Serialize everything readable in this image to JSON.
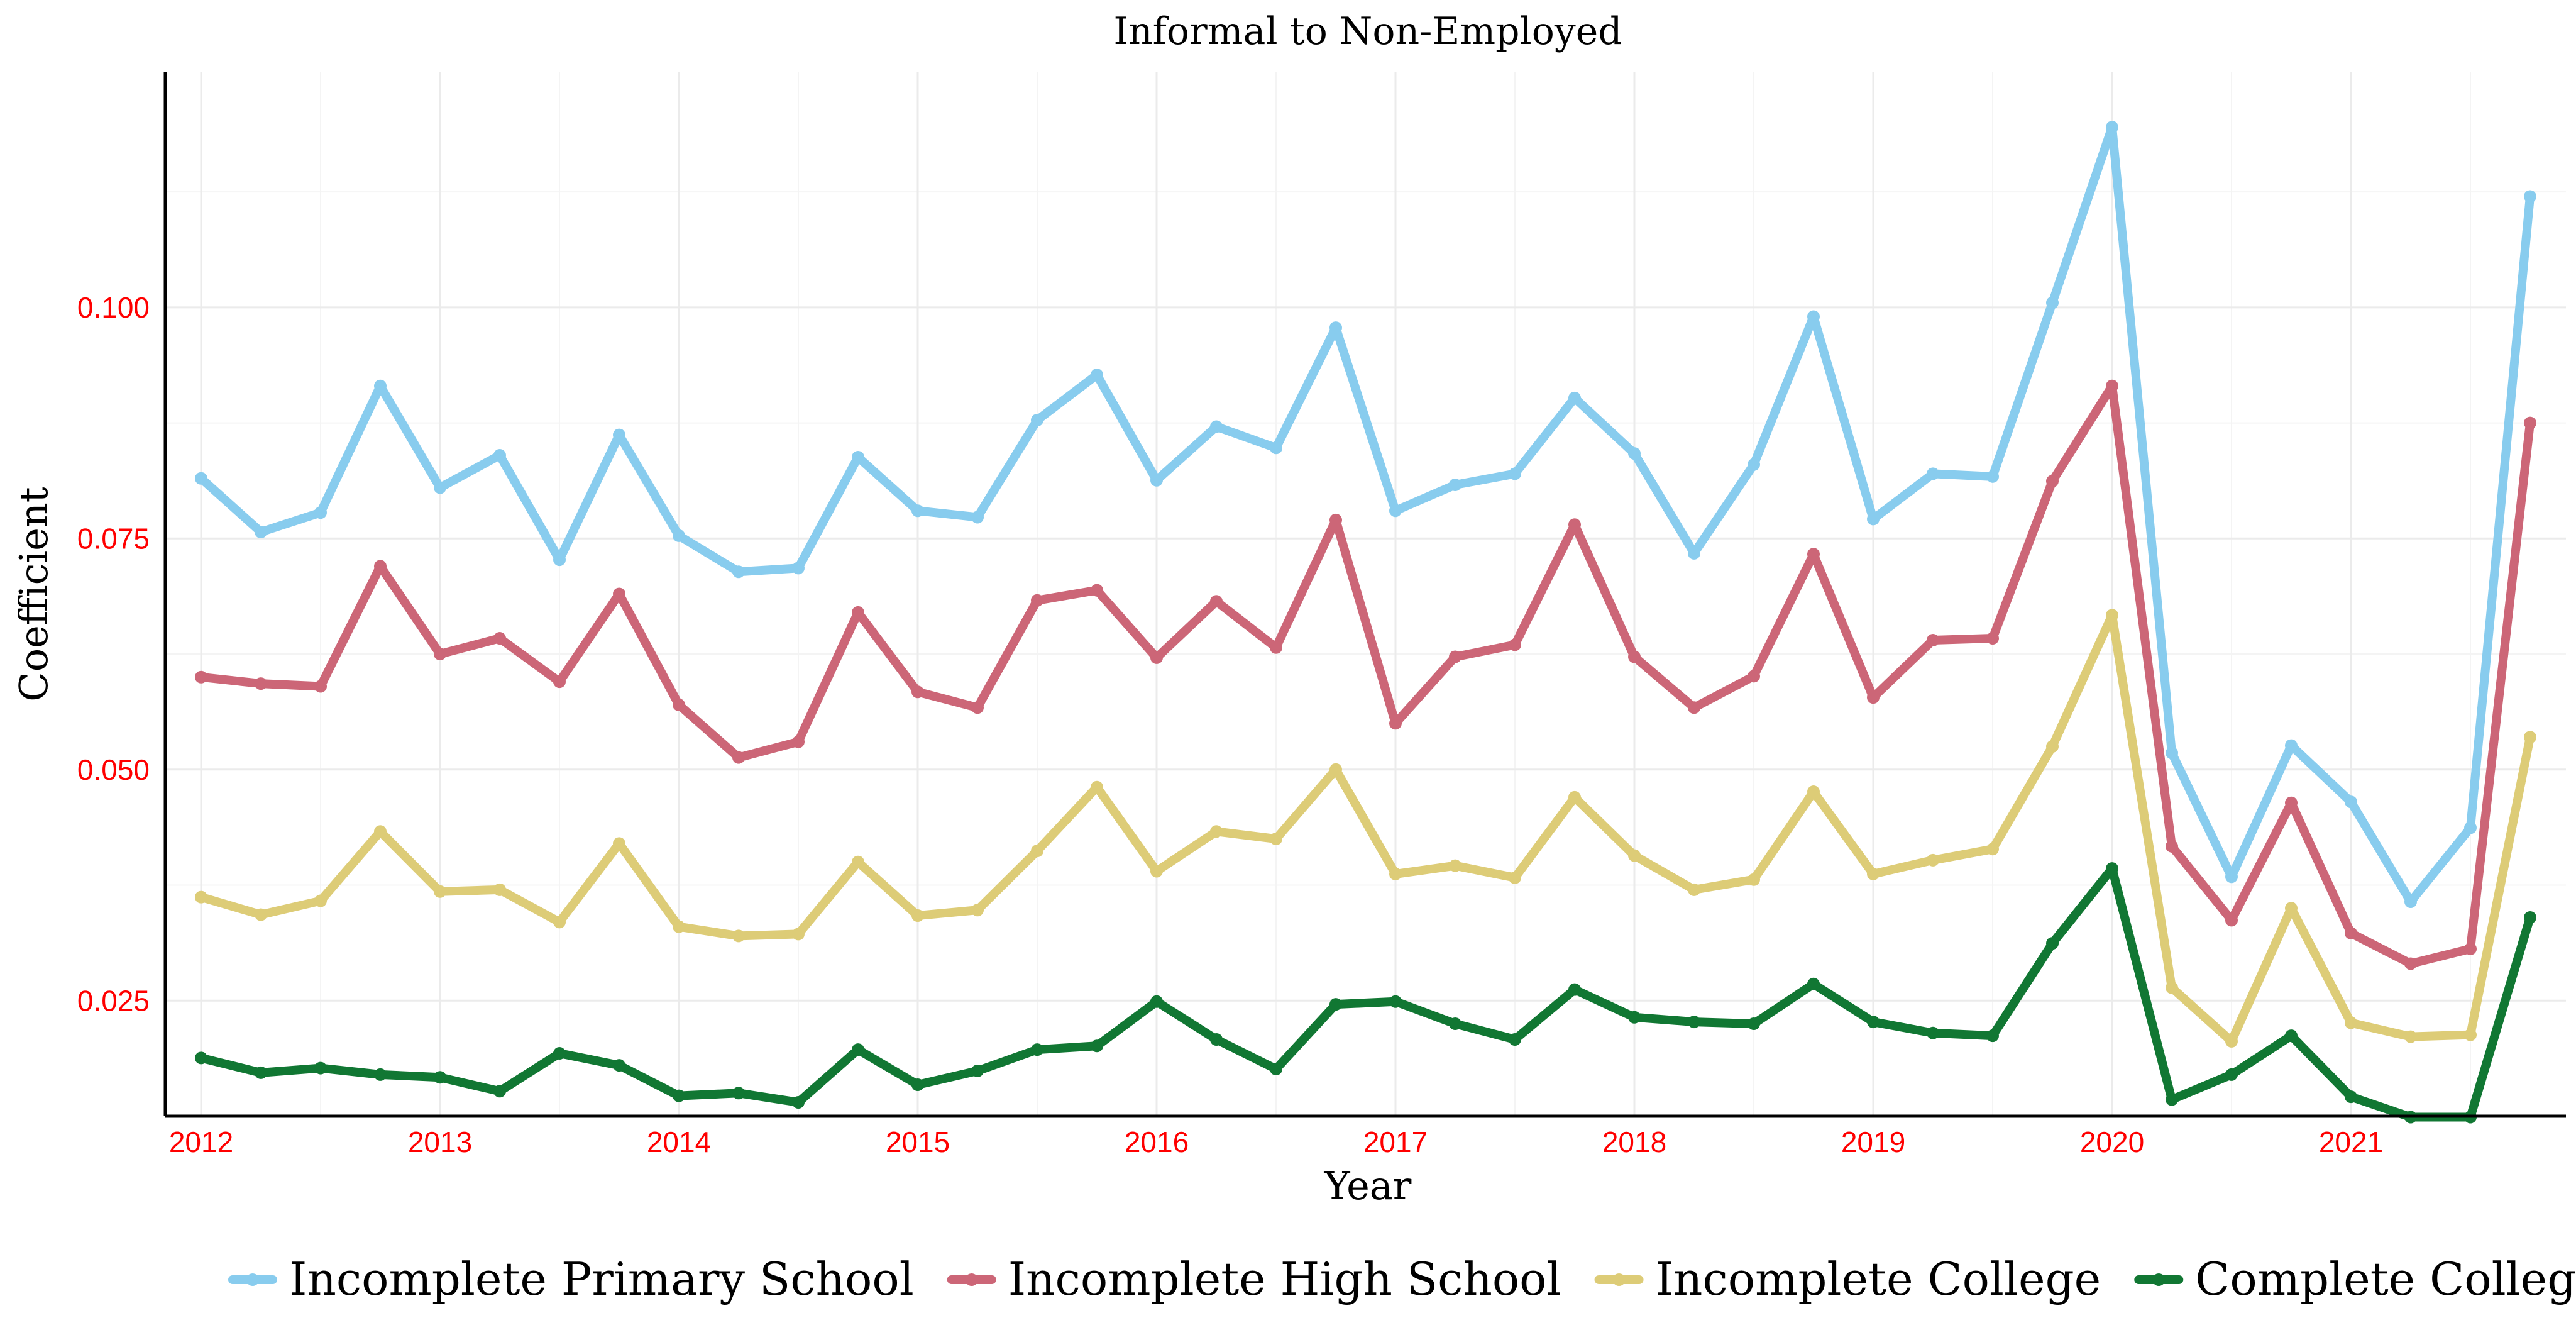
{
  "chart_data": {
    "type": "line",
    "title": "Informal to Non-Employed",
    "xlabel": "Year",
    "ylabel": "Coefficient",
    "x": [
      2012.0,
      2012.25,
      2012.5,
      2012.75,
      2013.0,
      2013.25,
      2013.5,
      2013.75,
      2014.0,
      2014.25,
      2014.5,
      2014.75,
      2015.0,
      2015.25,
      2015.5,
      2015.75,
      2016.0,
      2016.25,
      2016.5,
      2016.75,
      2017.0,
      2017.25,
      2017.5,
      2017.75,
      2018.0,
      2018.25,
      2018.5,
      2018.75,
      2019.0,
      2019.25,
      2019.5,
      2019.75,
      2020.0,
      2020.25,
      2020.5,
      2020.75,
      2021.0,
      2021.25,
      2021.5,
      2021.75
    ],
    "xlim": [
      2011.85,
      2021.9
    ],
    "ylim": [
      0.0125,
      0.1255
    ],
    "x_ticks": [
      "2012",
      "2013",
      "2014",
      "2015",
      "2016",
      "2017",
      "2018",
      "2019",
      "2020",
      "2021"
    ],
    "y_ticks": [
      "0.025",
      "0.050",
      "0.075",
      "0.100"
    ],
    "grid": true,
    "legend_position": "bottom",
    "series": [
      {
        "name": "Incomplete Primary School",
        "color": "#88ccee",
        "values": [
          0.0815,
          0.0757,
          0.0778,
          0.0915,
          0.0805,
          0.084,
          0.0727,
          0.0862,
          0.0753,
          0.0714,
          0.0718,
          0.0838,
          0.078,
          0.0773,
          0.0878,
          0.0927,
          0.0813,
          0.0871,
          0.0848,
          0.0978,
          0.078,
          0.0808,
          0.082,
          0.0902,
          0.0842,
          0.0734,
          0.083,
          0.099,
          0.0771,
          0.082,
          0.0817,
          0.1005,
          0.1195,
          0.0518,
          0.0384,
          0.0526,
          0.0465,
          0.0357,
          0.0437,
          0.112
        ]
      },
      {
        "name": "Incomplete High School",
        "color": "#cc6677",
        "values": [
          0.06,
          0.0593,
          0.059,
          0.072,
          0.0625,
          0.0642,
          0.0595,
          0.069,
          0.057,
          0.0513,
          0.053,
          0.067,
          0.0584,
          0.0567,
          0.0683,
          0.0694,
          0.0621,
          0.0682,
          0.0632,
          0.077,
          0.055,
          0.0622,
          0.0635,
          0.0765,
          0.0622,
          0.0567,
          0.0601,
          0.0733,
          0.0578,
          0.064,
          0.0642,
          0.0812,
          0.0915,
          0.0417,
          0.0337,
          0.0464,
          0.0323,
          0.029,
          0.0306,
          0.0875
        ]
      },
      {
        "name": "Incomplete College",
        "color": "#ddcc77",
        "values": [
          0.0362,
          0.0343,
          0.0358,
          0.0433,
          0.0368,
          0.037,
          0.0335,
          0.042,
          0.033,
          0.032,
          0.0322,
          0.04,
          0.0342,
          0.0348,
          0.0412,
          0.0481,
          0.039,
          0.0433,
          0.0425,
          0.05,
          0.0387,
          0.0396,
          0.0383,
          0.047,
          0.0407,
          0.037,
          0.0381,
          0.0476,
          0.0387,
          0.0402,
          0.0414,
          0.0525,
          0.0667,
          0.0264,
          0.0206,
          0.035,
          0.0226,
          0.0211,
          0.0213,
          0.0535
        ]
      },
      {
        "name": "Complete College",
        "color": "#117733",
        "values": [
          0.0188,
          0.0172,
          0.0177,
          0.017,
          0.0167,
          0.0152,
          0.0193,
          0.018,
          0.0147,
          0.015,
          0.014,
          0.0197,
          0.0159,
          0.0174,
          0.0197,
          0.0201,
          0.0249,
          0.0208,
          0.0176,
          0.0246,
          0.0249,
          0.0225,
          0.0208,
          0.0262,
          0.0232,
          0.0227,
          0.0225,
          0.0268,
          0.0227,
          0.0215,
          0.0212,
          0.0312,
          0.0393,
          0.0143,
          0.017,
          0.0212,
          0.0146,
          0.0124,
          0.0124,
          0.034
        ]
      }
    ]
  }
}
